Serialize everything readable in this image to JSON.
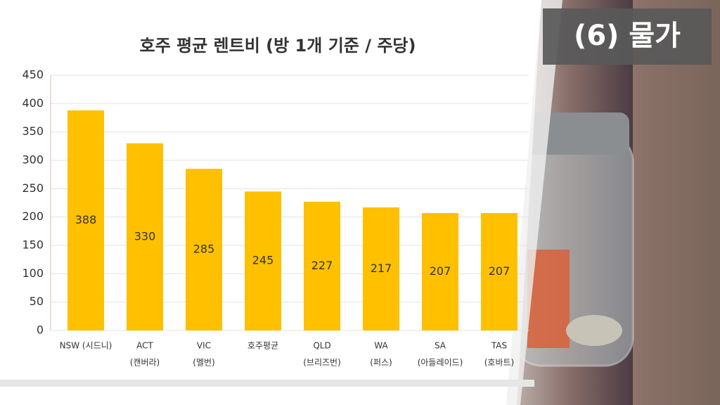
{
  "chart_data": {
    "type": "bar",
    "title": "호주 평균 렌트비 (방 1개 기준 / 주당)",
    "badge": "(6) 물가",
    "categories": [
      [
        "NSW (시드니)"
      ],
      [
        "ACT",
        "(캔버라)"
      ],
      [
        "VIC",
        "(멜번)"
      ],
      [
        "호주평균"
      ],
      [
        "QLD",
        "(브리즈번)"
      ],
      [
        "WA",
        "(퍼스)"
      ],
      [
        "SA",
        "(아들레이드)"
      ],
      [
        "TAS",
        "(호바트)"
      ]
    ],
    "values": [
      388,
      330,
      285,
      245,
      227,
      217,
      207,
      207
    ],
    "color": "#ffc000",
    "ylim": [
      0,
      450
    ],
    "yticks": [
      0,
      50,
      100,
      150,
      200,
      250,
      300,
      350,
      400,
      450
    ],
    "grid": true
  }
}
